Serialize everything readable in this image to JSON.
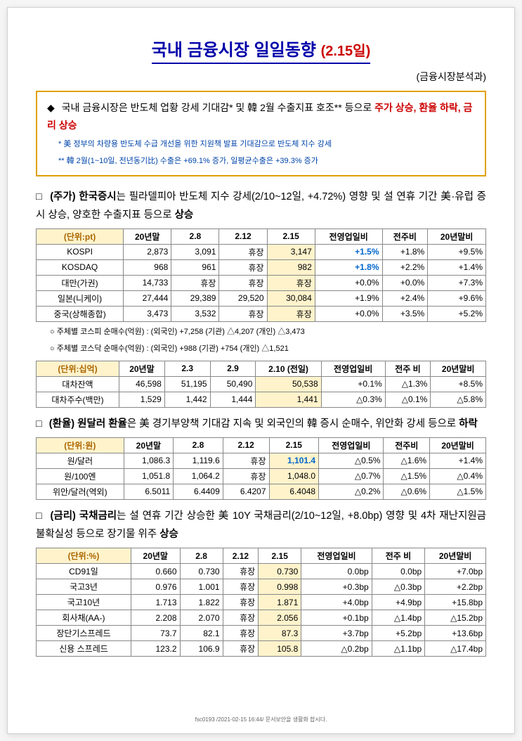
{
  "title": "국내 금융시장 일일동향",
  "title_date": "(2.15일)",
  "source": "(금융시장분석과)",
  "summary": {
    "main_prefix": "국내 금융시장은 반도체 업황 강세 기대감* 및 韓 2월 수출지표 호조** 등으로 ",
    "hl1": "주가 상승, 환율 하락, 금리 상승",
    "note1": "* 美 정부의 차량용 반도체 수급 개선을 위한 지원책 발표 기대감으로 반도체 지수 강세",
    "note2": "** 韓 2월(1~10일, 전년동기比) 수출은 +69.1% 증가, 일평균수출은 +39.3% 증가"
  },
  "sec_stock": {
    "head_pre": "(주가) 한국증시",
    "head_rest": "는 필라델피아 반도체 지수 강세(2/10~12일, +4.72%) 영향 및 설 연휴 기간 美·유럽 증시 상승, 양호한 수출지표 등으로 ",
    "head_tail": "상승",
    "unit": "(단위:pt)",
    "cols": [
      "20년말",
      "2.8",
      "2.12",
      "2.15",
      "전영업일비",
      "전주비",
      "20년말비"
    ],
    "rows": [
      {
        "label": "KOSPI",
        "c": [
          "2,873",
          "3,091",
          "휴장",
          "3,147",
          "+1.5%",
          "+1.8%",
          "+9.5%"
        ],
        "hl": 3,
        "blue": 4
      },
      {
        "label": "KOSDAQ",
        "c": [
          "968",
          "961",
          "휴장",
          "982",
          "+1.8%",
          "+2.2%",
          "+1.4%"
        ],
        "hl": 3,
        "blue": 4
      },
      {
        "label": "대만(가권)",
        "c": [
          "14,733",
          "휴장",
          "휴장",
          "휴장",
          "+0.0%",
          "+0.0%",
          "+7.3%"
        ],
        "hl": 3
      },
      {
        "label": "일본(니케이)",
        "c": [
          "27,444",
          "29,389",
          "29,520",
          "30,084",
          "+1.9%",
          "+2.4%",
          "+9.6%"
        ],
        "hl": 3
      },
      {
        "label": "중국(상해종합)",
        "c": [
          "3,473",
          "3,532",
          "휴장",
          "휴장",
          "+0.0%",
          "+3.5%",
          "+5.2%"
        ],
        "hl": 3
      }
    ],
    "sub1": "○ 주체별 코스피 순매수(억원) : (외국인) +7,258 (기관) △4,207 (개인) △3,473",
    "sub2": "○ 주체별 코스닥 순매수(억원) : (외국인)   +988 (기관)   +754 (개인) △1,521",
    "unit2": "(단위:십억)",
    "cols2": [
      "20년말",
      "2.3",
      "2.9",
      "2.10 (전일)",
      "전영업일비",
      "전주 비",
      "20년말비"
    ],
    "rows2": [
      {
        "label": "대차잔액",
        "c": [
          "46,598",
          "51,195",
          "50,490",
          "50,538",
          "+0.1%",
          "△1.3%",
          "+8.5%"
        ],
        "hl": 3
      },
      {
        "label": "대차주수(백만)",
        "c": [
          "1,529",
          "1,442",
          "1,444",
          "1,441",
          "△0.3%",
          "△0.1%",
          "△5.8%"
        ],
        "hl": 3
      }
    ]
  },
  "sec_fx": {
    "head_pre": "(환율) 원달러 환율",
    "head_rest": "은 美 경기부양책 기대감 지속 및 외국인의 韓 증시 순매수, 위안화 강세 등으로 ",
    "head_tail": "하락",
    "unit": "(단위:원)",
    "cols": [
      "20년말",
      "2.8",
      "2.12",
      "2.15",
      "전영업일비",
      "전주비",
      "20년말비"
    ],
    "rows": [
      {
        "label": "원/달러",
        "c": [
          "1,086.3",
          "1,119.6",
          "휴장",
          "1,101.4",
          "△0.5%",
          "△1.6%",
          "+1.4%"
        ],
        "hl": 3,
        "blue": 3
      },
      {
        "label": "원/100엔",
        "c": [
          "1,051.8",
          "1,064.2",
          "휴장",
          "1,048.0",
          "△0.7%",
          "△1.5%",
          "△0.4%"
        ],
        "hl": 3
      },
      {
        "label": "위안/달러(역외)",
        "c": [
          "6.5011",
          "6.4409",
          "6.4207",
          "6.4048",
          "△0.2%",
          "△0.6%",
          "△1.5%"
        ],
        "hl": 3
      }
    ]
  },
  "sec_rate": {
    "head_pre": "(금리) 국채금리",
    "head_rest": "는 설 연휴 기간 상승한 美 10Y 국채금리(2/10~12일, +8.0bp) 영향 및 4차 재난지원금 불확실성 등으로 장기물 위주 ",
    "head_tail": "상승",
    "unit": "(단위:%)",
    "cols": [
      "20년말",
      "2.8",
      "2.12",
      "2.15",
      "전영업일비",
      "전주 비",
      "20년말비"
    ],
    "rows": [
      {
        "label": "CD91일",
        "c": [
          "0.660",
          "0.730",
          "휴장",
          "0.730",
          "0.0bp",
          "0.0bp",
          "+7.0bp"
        ],
        "hl": 3
      },
      {
        "label": "국고3년",
        "c": [
          "0.976",
          "1.001",
          "휴장",
          "0.998",
          "+0.3bp",
          "△0.3bp",
          "+2.2bp"
        ],
        "hl": 3
      },
      {
        "label": "국고10년",
        "c": [
          "1.713",
          "1.822",
          "휴장",
          "1.871",
          "+4.0bp",
          "+4.9bp",
          "+15.8bp"
        ],
        "hl": 3
      },
      {
        "label": "회사채(AA-)",
        "c": [
          "2.208",
          "2.070",
          "휴장",
          "2.056",
          "+0.1bp",
          "△1.4bp",
          "△15.2bp"
        ],
        "hl": 3
      },
      {
        "label": "장단기스프레드",
        "c": [
          "73.7",
          "82.1",
          "휴장",
          "87.3",
          "+3.7bp",
          "+5.2bp",
          "+13.6bp"
        ],
        "hl": 3
      },
      {
        "label": "신용 스프레드",
        "c": [
          "123.2",
          "106.9",
          "휴장",
          "105.8",
          "△0.2bp",
          "△1.1bp",
          "△17.4bp"
        ],
        "hl": 3
      }
    ]
  },
  "footer": "fsc0193 /2021-02-15 16:44/ 문서보안을 생활화 합시다."
}
